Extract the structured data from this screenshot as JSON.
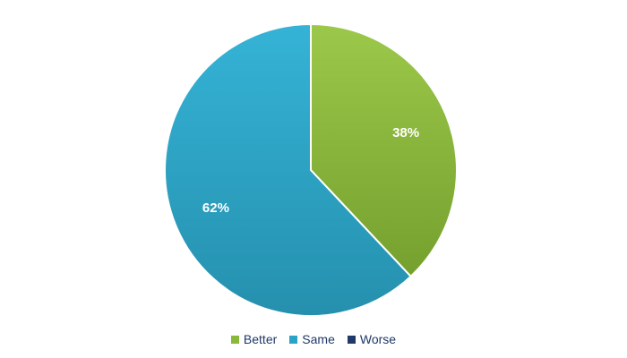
{
  "chart_data": {
    "type": "pie",
    "categories": [
      "Better",
      "Same",
      "Worse"
    ],
    "values": [
      38,
      62,
      0
    ],
    "labels": [
      "38%",
      "62%",
      ""
    ],
    "colors": [
      "#8ab83a",
      "#2aa3c6",
      "#1f3a68"
    ],
    "legend_position": "bottom"
  }
}
